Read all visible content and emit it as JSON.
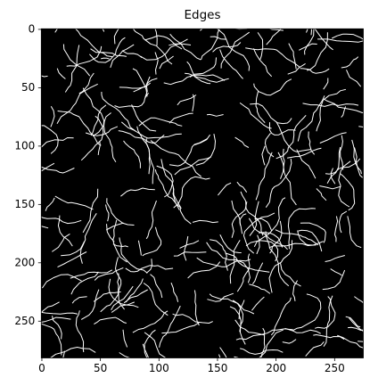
{
  "chart_data": {
    "type": "image",
    "title": "Edges",
    "xlim": [
      -0.5,
      274.5
    ],
    "ylim": [
      281.5,
      -0.5
    ],
    "xticks": [
      0,
      50,
      100,
      150,
      200,
      250
    ],
    "yticks": [
      0,
      50,
      100,
      150,
      200,
      250
    ]
  }
}
